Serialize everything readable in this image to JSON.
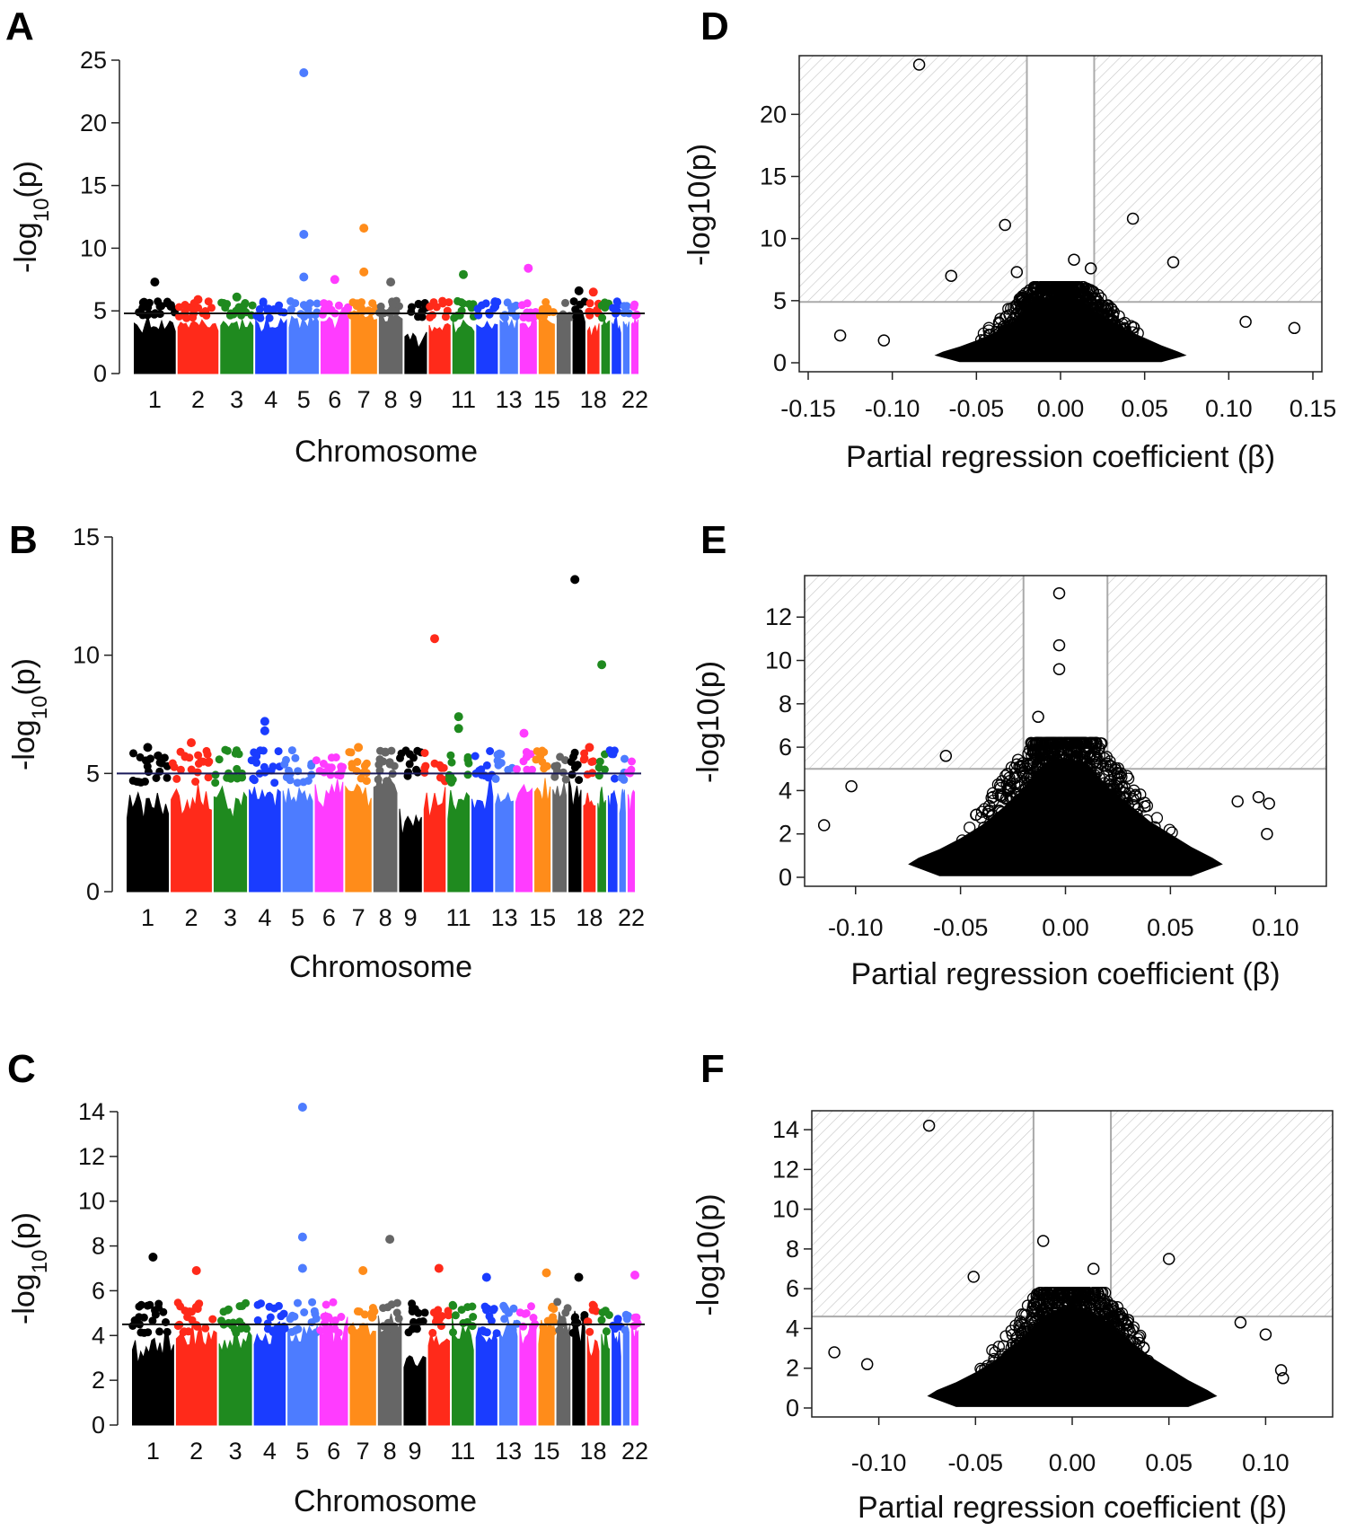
{
  "chart_data": [
    {
      "panel": "A",
      "type": "scatter",
      "subtype": "manhattan",
      "xlabel": "Chromosome",
      "ylabel": "-log10(p)",
      "ylim": [
        0,
        25
      ],
      "yticks": [
        0,
        5,
        10,
        15,
        20,
        25
      ],
      "threshold": 4.8,
      "chromosome_ticks": [
        "1",
        "2",
        "3",
        "4",
        "5",
        "6",
        "7",
        "8",
        "9",
        "11",
        "13",
        "15",
        "18",
        "22"
      ],
      "series_colors": [
        "#000000",
        "#ff2a1a",
        "#1f8a1f",
        "#1a3cff",
        "#4d7cff",
        "#ff3cff",
        "#ff8c1a",
        "#666666"
      ],
      "peaks": [
        {
          "chromosome": 1,
          "value": 7.3
        },
        {
          "chromosome": 2,
          "value": 5.9
        },
        {
          "chromosome": 3,
          "value": 6.1
        },
        {
          "chromosome": 5,
          "value": 24.0
        },
        {
          "chromosome": 5,
          "value": 11.1
        },
        {
          "chromosome": 5,
          "value": 7.7
        },
        {
          "chromosome": 6,
          "value": 7.5
        },
        {
          "chromosome": 7,
          "value": 11.6
        },
        {
          "chromosome": 7,
          "value": 8.1
        },
        {
          "chromosome": 8,
          "value": 7.3
        },
        {
          "chromosome": 11,
          "value": 7.9
        },
        {
          "chromosome": 14,
          "value": 8.4
        },
        {
          "chromosome": 17,
          "value": 6.6
        },
        {
          "chromosome": 18,
          "value": 6.5
        }
      ]
    },
    {
      "panel": "B",
      "type": "scatter",
      "subtype": "manhattan",
      "xlabel": "Chromosome",
      "ylabel": "-log10(p)",
      "ylim": [
        0,
        15
      ],
      "yticks": [
        0,
        5,
        10,
        15
      ],
      "threshold": 5.0,
      "chromosome_ticks": [
        "1",
        "2",
        "3",
        "4",
        "5",
        "6",
        "7",
        "8",
        "9",
        "11",
        "13",
        "15",
        "18",
        "22"
      ],
      "series_colors": [
        "#000000",
        "#ff2a1a",
        "#1f8a1f",
        "#1a3cff",
        "#4d7cff",
        "#ff3cff",
        "#ff8c1a",
        "#666666"
      ],
      "peaks": [
        {
          "chromosome": 1,
          "value": 6.1
        },
        {
          "chromosome": 2,
          "value": 6.3
        },
        {
          "chromosome": 4,
          "value": 7.2
        },
        {
          "chromosome": 4,
          "value": 6.8
        },
        {
          "chromosome": 7,
          "value": 6.1
        },
        {
          "chromosome": 8,
          "value": 5.9
        },
        {
          "chromosome": 10,
          "value": 10.7
        },
        {
          "chromosome": 11,
          "value": 7.4
        },
        {
          "chromosome": 11,
          "value": 6.9
        },
        {
          "chromosome": 14,
          "value": 6.7
        },
        {
          "chromosome": 17,
          "value": 13.2
        },
        {
          "chromosome": 19,
          "value": 9.6
        },
        {
          "chromosome": 18,
          "value": 6.1
        }
      ]
    },
    {
      "panel": "C",
      "type": "scatter",
      "subtype": "manhattan",
      "xlabel": "Chromosome",
      "ylabel": "-log10(p)",
      "ylim": [
        0,
        14
      ],
      "yticks": [
        0,
        2,
        4,
        6,
        8,
        10,
        12,
        14
      ],
      "threshold": 4.5,
      "chromosome_ticks": [
        "1",
        "2",
        "3",
        "4",
        "5",
        "6",
        "7",
        "8",
        "9",
        "11",
        "13",
        "15",
        "18",
        "22"
      ],
      "series_colors": [
        "#000000",
        "#ff2a1a",
        "#1f8a1f",
        "#1a3cff",
        "#4d7cff",
        "#ff3cff",
        "#ff8c1a",
        "#666666"
      ],
      "peaks": [
        {
          "chromosome": 1,
          "value": 7.5
        },
        {
          "chromosome": 2,
          "value": 6.9
        },
        {
          "chromosome": 5,
          "value": 14.2
        },
        {
          "chromosome": 5,
          "value": 8.4
        },
        {
          "chromosome": 5,
          "value": 7.0
        },
        {
          "chromosome": 7,
          "value": 6.9
        },
        {
          "chromosome": 8,
          "value": 8.3
        },
        {
          "chromosome": 10,
          "value": 7.0
        },
        {
          "chromosome": 12,
          "value": 6.6
        },
        {
          "chromosome": 15,
          "value": 6.8
        },
        {
          "chromosome": 17,
          "value": 6.6
        },
        {
          "chromosome": 22,
          "value": 6.7
        }
      ]
    },
    {
      "panel": "D",
      "type": "scatter",
      "subtype": "volcano",
      "xlabel": "Partial regression coefficient (β)",
      "ylabel": "-log10(p)",
      "xlim": [
        -0.15,
        0.15
      ],
      "ylim": [
        0,
        24
      ],
      "xticks": [
        "-0.15",
        "-0.10",
        "-0.05",
        "0.00",
        "0.05",
        "0.10",
        "0.15"
      ],
      "yticks": [
        "0",
        "5",
        "10",
        "15",
        "20"
      ],
      "threshold_y": 4.9,
      "threshold_x": [
        -0.02,
        0.02
      ],
      "highlighted_points": [
        {
          "x": -0.084,
          "y": 24.0
        },
        {
          "x": -0.033,
          "y": 11.1
        },
        {
          "x": 0.043,
          "y": 11.6
        },
        {
          "x": 0.067,
          "y": 8.1
        },
        {
          "x": 0.008,
          "y": 8.3
        },
        {
          "x": -0.026,
          "y": 7.3
        },
        {
          "x": 0.018,
          "y": 7.6
        },
        {
          "x": -0.065,
          "y": 7.0
        },
        {
          "x": -0.131,
          "y": 2.2
        },
        {
          "x": -0.105,
          "y": 1.8
        },
        {
          "x": 0.139,
          "y": 2.8
        },
        {
          "x": 0.11,
          "y": 3.3
        }
      ]
    },
    {
      "panel": "E",
      "type": "scatter",
      "subtype": "volcano",
      "xlabel": "Partial regression coefficient (β)",
      "ylabel": "-log10(p)",
      "xlim": [
        -0.12,
        0.12
      ],
      "ylim": [
        0,
        13.5
      ],
      "xticks": [
        "-0.10",
        "-0.05",
        "0.00",
        "0.05",
        "0.10"
      ],
      "yticks": [
        "0",
        "2",
        "4",
        "6",
        "8",
        "10",
        "12"
      ],
      "threshold_y": 5.0,
      "threshold_x": [
        -0.02,
        0.02
      ],
      "highlighted_points": [
        {
          "x": -0.003,
          "y": 13.1
        },
        {
          "x": -0.003,
          "y": 10.7
        },
        {
          "x": -0.003,
          "y": 9.6
        },
        {
          "x": -0.013,
          "y": 7.4
        },
        {
          "x": -0.057,
          "y": 5.6
        },
        {
          "x": -0.115,
          "y": 2.4
        },
        {
          "x": -0.102,
          "y": 4.2
        },
        {
          "x": 0.097,
          "y": 3.4
        },
        {
          "x": 0.092,
          "y": 3.7
        },
        {
          "x": 0.096,
          "y": 2.0
        },
        {
          "x": 0.082,
          "y": 3.5
        }
      ]
    },
    {
      "panel": "F",
      "type": "scatter",
      "subtype": "volcano",
      "xlabel": "Partial regression coefficient (β)",
      "ylabel": "-log10(p)",
      "xlim": [
        -0.13,
        0.13
      ],
      "ylim": [
        0,
        14.5
      ],
      "xticks": [
        "-0.10",
        "-0.05",
        "0.00",
        "0.05",
        "0.10"
      ],
      "yticks": [
        "0",
        "2",
        "4",
        "6",
        "8",
        "10",
        "12",
        "14"
      ],
      "threshold_y": 4.6,
      "threshold_x": [
        -0.02,
        0.02
      ],
      "highlighted_points": [
        {
          "x": -0.074,
          "y": 14.2
        },
        {
          "x": -0.015,
          "y": 8.4
        },
        {
          "x": -0.051,
          "y": 6.6
        },
        {
          "x": 0.05,
          "y": 7.5
        },
        {
          "x": 0.011,
          "y": 7.0
        },
        {
          "x": -0.123,
          "y": 2.8
        },
        {
          "x": -0.106,
          "y": 2.2
        },
        {
          "x": 0.087,
          "y": 4.3
        },
        {
          "x": 0.1,
          "y": 3.7
        },
        {
          "x": 0.108,
          "y": 1.9
        },
        {
          "x": 0.109,
          "y": 1.5
        }
      ]
    }
  ]
}
